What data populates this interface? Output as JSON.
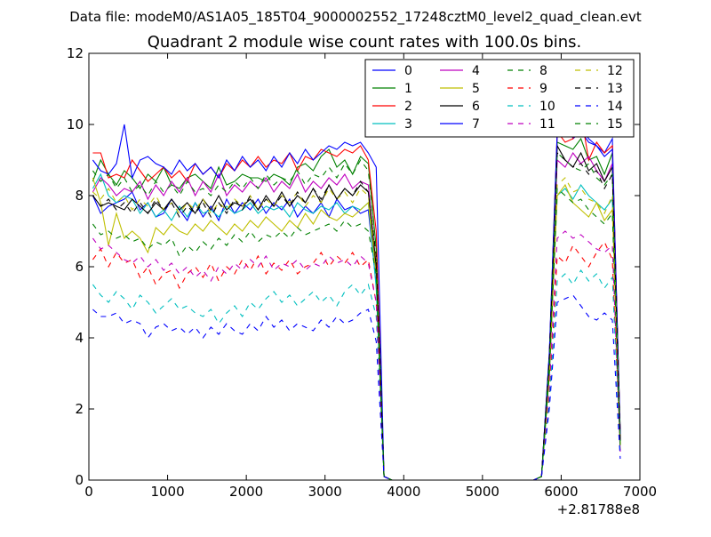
{
  "chart_data": {
    "type": "line",
    "suptitle": "Data file: modeM0/AS1A05_185T04_9000002552_17248cztM0_level2_quad_clean.evt",
    "title": "Quadrant 2 module wise count rates with 100.0s bins.",
    "xlabel": "",
    "ylabel": "",
    "x_offset_label": "+2.81788e8",
    "xlim": [
      0,
      7000
    ],
    "ylim": [
      0,
      12
    ],
    "xticks": [
      0,
      1000,
      2000,
      3000,
      4000,
      5000,
      6000,
      7000
    ],
    "yticks": [
      0,
      2,
      4,
      6,
      8,
      10,
      12
    ],
    "grid": false,
    "legend_position": "top-right",
    "legend_columns": 4,
    "x": [
      50,
      150,
      250,
      350,
      450,
      550,
      650,
      750,
      850,
      950,
      1050,
      1150,
      1250,
      1350,
      1450,
      1550,
      1650,
      1750,
      1850,
      1950,
      2050,
      2150,
      2250,
      2350,
      2450,
      2550,
      2650,
      2750,
      2850,
      2950,
      3050,
      3150,
      3250,
      3350,
      3450,
      3550,
      3650,
      3750,
      3850,
      3950,
      4050,
      4150,
      4250,
      4350,
      4450,
      4550,
      4650,
      4750,
      4850,
      4950,
      5050,
      5150,
      5250,
      5350,
      5450,
      5550,
      5650,
      5750,
      5850,
      5950,
      6050,
      6150,
      6250,
      6350,
      6450,
      6550,
      6650,
      6750
    ],
    "series": [
      {
        "name": "0",
        "color": "#0000ff",
        "dash": "solid",
        "values": [
          8.0,
          7.5,
          7.7,
          7.8,
          7.9,
          8.1,
          7.6,
          7.8,
          7.4,
          7.5,
          7.9,
          7.6,
          7.3,
          7.8,
          7.4,
          7.7,
          7.3,
          7.9,
          7.5,
          7.8,
          7.6,
          7.9,
          7.5,
          7.8,
          7.6,
          7.9,
          7.4,
          7.7,
          7.5,
          7.8,
          7.4,
          7.9,
          7.6,
          7.7,
          7.5,
          7.6,
          5.5,
          0.1,
          0,
          0,
          0,
          0,
          0,
          0,
          0,
          0,
          0,
          0,
          0,
          0,
          0,
          0,
          0,
          0,
          0,
          0,
          0,
          0.1,
          3.5,
          9.7,
          10.3,
          9.6,
          9.8,
          9.5,
          9.4,
          9.2,
          9.6,
          1.2
        ]
      },
      {
        "name": "1",
        "color": "#008000",
        "dash": "solid",
        "values": [
          8.4,
          9.0,
          8.6,
          8.3,
          8.7,
          8.5,
          8.2,
          8.6,
          8.4,
          8.8,
          8.3,
          8.2,
          8.5,
          8.6,
          8.4,
          8.2,
          8.8,
          8.3,
          8.4,
          8.6,
          8.5,
          8.5,
          8.4,
          8.6,
          8.5,
          8.3,
          8.8,
          8.9,
          8.7,
          9.1,
          9.3,
          8.8,
          9.0,
          8.6,
          9.1,
          8.9,
          6.5,
          0.1,
          0,
          0,
          0,
          0,
          0,
          0,
          0,
          0,
          0,
          0,
          0,
          0,
          0,
          0,
          0,
          0,
          0,
          0,
          0,
          0.1,
          3.5,
          9.5,
          9.4,
          9.3,
          9.6,
          9.0,
          9.1,
          8.6,
          9.2,
          1.3
        ]
      },
      {
        "name": "2",
        "color": "#ff0000",
        "dash": "solid",
        "values": [
          9.2,
          9.2,
          8.5,
          8.6,
          8.5,
          9.0,
          8.7,
          8.4,
          8.6,
          8.8,
          8.5,
          8.7,
          8.4,
          8.9,
          8.6,
          8.8,
          8.5,
          8.9,
          8.7,
          9.0,
          8.8,
          9.1,
          8.8,
          9.0,
          8.9,
          9.2,
          8.7,
          9.1,
          9.0,
          9.3,
          9.2,
          9.1,
          9.3,
          9.2,
          9.4,
          9.0,
          7.0,
          0.1,
          0,
          0,
          0,
          0,
          0,
          0,
          0,
          0,
          0,
          0,
          0,
          0,
          0,
          0,
          0,
          0,
          0,
          0,
          0,
          0.1,
          3.5,
          9.8,
          9.5,
          9.6,
          10.3,
          9.0,
          9.5,
          9.2,
          9.4,
          1.3
        ]
      },
      {
        "name": "3",
        "color": "#00bfbf",
        "dash": "solid",
        "values": [
          8.2,
          8.6,
          8.0,
          7.8,
          8.0,
          7.9,
          7.5,
          7.8,
          7.4,
          7.6,
          7.3,
          7.7,
          7.4,
          7.8,
          7.5,
          7.6,
          7.4,
          7.7,
          7.5,
          7.6,
          7.8,
          7.5,
          7.7,
          7.6,
          7.7,
          7.4,
          7.8,
          7.6,
          7.5,
          7.7,
          7.6,
          7.8,
          7.5,
          7.7,
          7.6,
          7.8,
          5.4,
          0.1,
          0,
          0,
          0,
          0,
          0,
          0,
          0,
          0,
          0,
          0,
          0,
          0,
          0,
          0,
          0,
          0,
          0,
          0,
          0,
          0.1,
          3.0,
          8.0,
          8.2,
          7.9,
          8.3,
          8.0,
          7.8,
          7.6,
          7.9,
          1.0
        ]
      },
      {
        "name": "4",
        "color": "#bf00bf",
        "dash": "solid",
        "values": [
          8.1,
          8.5,
          8.3,
          8.0,
          8.2,
          8.1,
          8.4,
          7.9,
          8.3,
          8.0,
          8.4,
          8.1,
          8.5,
          8.0,
          8.4,
          8.1,
          8.6,
          8.0,
          8.3,
          8.1,
          8.4,
          8.2,
          8.5,
          8.1,
          8.4,
          8.2,
          8.6,
          8.1,
          8.4,
          8.2,
          8.5,
          8.3,
          8.6,
          8.2,
          8.4,
          8.3,
          6.0,
          0.1,
          0,
          0,
          0,
          0,
          0,
          0,
          0,
          0,
          0,
          0,
          0,
          0,
          0,
          0,
          0,
          0,
          0,
          0,
          0,
          0.1,
          3.2,
          9.0,
          8.8,
          9.2,
          8.9,
          9.1,
          8.7,
          8.4,
          8.9,
          1.1
        ]
      },
      {
        "name": "5",
        "color": "#bfbf00",
        "dash": "solid",
        "values": [
          8.5,
          7.8,
          6.6,
          7.5,
          6.8,
          7.0,
          6.8,
          6.4,
          7.1,
          6.9,
          7.2,
          7.0,
          6.9,
          7.2,
          7.0,
          7.3,
          7.1,
          6.9,
          7.2,
          7.0,
          7.3,
          7.1,
          7.4,
          7.2,
          7.0,
          7.3,
          7.1,
          7.5,
          7.2,
          7.6,
          7.4,
          7.3,
          7.5,
          7.4,
          7.6,
          7.8,
          5.8,
          0.1,
          0,
          0,
          0,
          0,
          0,
          0,
          0,
          0,
          0,
          0,
          0,
          0,
          0,
          0,
          0,
          0,
          0,
          0,
          0,
          0.1,
          3.0,
          8.0,
          8.3,
          7.8,
          7.6,
          7.4,
          7.8,
          7.3,
          7.6,
          1.0
        ]
      },
      {
        "name": "6",
        "color": "#000000",
        "dash": "solid",
        "values": [
          8.0,
          7.7,
          7.8,
          7.7,
          7.6,
          7.9,
          7.7,
          7.5,
          7.8,
          7.6,
          7.9,
          7.6,
          7.8,
          7.5,
          7.9,
          7.6,
          8.0,
          7.6,
          7.8,
          7.7,
          7.9,
          7.6,
          8.0,
          7.7,
          8.1,
          7.7,
          8.0,
          7.8,
          8.2,
          7.8,
          8.3,
          7.9,
          8.2,
          8.0,
          8.3,
          8.1,
          6.0,
          0.1,
          0,
          0,
          0,
          0,
          0,
          0,
          0,
          0,
          0,
          0,
          0,
          0,
          0,
          0,
          0,
          0,
          0,
          0,
          0,
          0.1,
          3.3,
          9.4,
          9.0,
          8.8,
          9.2,
          8.7,
          8.9,
          8.4,
          8.8,
          1.1
        ]
      },
      {
        "name": "7",
        "color": "#0000ff",
        "dash": "solid",
        "values": [
          9.0,
          8.7,
          8.6,
          8.9,
          10.0,
          8.5,
          9.0,
          9.1,
          8.9,
          8.8,
          8.6,
          9.0,
          8.7,
          8.9,
          8.6,
          8.8,
          8.5,
          9.0,
          8.7,
          9.1,
          8.8,
          9.0,
          8.7,
          9.1,
          8.8,
          9.2,
          8.9,
          9.3,
          9.0,
          9.2,
          9.4,
          9.3,
          9.5,
          9.4,
          9.5,
          9.2,
          8.8,
          0.1,
          0,
          0,
          0,
          0,
          0,
          0,
          0,
          0,
          0,
          0,
          0,
          0,
          0,
          0,
          0,
          0,
          0,
          0,
          0,
          0.1,
          3.6,
          9.8,
          10.2,
          9.7,
          9.9,
          9.6,
          9.4,
          9.1,
          9.3,
          1.3
        ]
      },
      {
        "name": "8",
        "color": "#008000",
        "dash": "dashed",
        "values": [
          8.7,
          8.4,
          8.6,
          8.2,
          8.5,
          8.1,
          8.3,
          8.0,
          8.4,
          8.1,
          8.3,
          8.0,
          8.4,
          8.1,
          8.2,
          8.0,
          8.3,
          8.1,
          8.4,
          8.2,
          8.5,
          8.2,
          8.6,
          8.3,
          8.5,
          8.4,
          8.7,
          8.3,
          8.6,
          8.5,
          8.8,
          8.5,
          8.9,
          8.6,
          9.0,
          8.7,
          6.5,
          0.1,
          0,
          0,
          0,
          0,
          0,
          0,
          0,
          0,
          0,
          0,
          0,
          0,
          0,
          0,
          0,
          0,
          0,
          0,
          0,
          0.1,
          3.4,
          9.2,
          9.0,
          8.8,
          8.7,
          8.9,
          8.5,
          8.3,
          8.6,
          1.1
        ]
      },
      {
        "name": "9",
        "color": "#ff0000",
        "dash": "dashed",
        "values": [
          6.2,
          6.5,
          6.0,
          6.4,
          6.1,
          6.2,
          5.7,
          6.0,
          5.5,
          5.8,
          5.9,
          5.4,
          5.8,
          6.0,
          5.7,
          6.1,
          5.6,
          6.0,
          5.8,
          6.2,
          5.9,
          6.3,
          5.8,
          6.1,
          5.9,
          6.2,
          5.8,
          6.0,
          6.1,
          6.4,
          6.0,
          6.3,
          6.1,
          6.4,
          6.0,
          6.2,
          5.0,
          0.1,
          0,
          0,
          0,
          0,
          0,
          0,
          0,
          0,
          0,
          0,
          0,
          0,
          0,
          0,
          0,
          0,
          0,
          0,
          0,
          0.1,
          2.4,
          6.3,
          6.1,
          6.6,
          6.3,
          6.0,
          6.4,
          6.7,
          6.2,
          0.8
        ]
      },
      {
        "name": "10",
        "color": "#00bfbf",
        "dash": "dashed",
        "values": [
          5.5,
          5.2,
          5.0,
          5.3,
          5.1,
          4.8,
          5.2,
          5.0,
          4.7,
          4.9,
          5.1,
          4.8,
          4.9,
          4.7,
          4.6,
          4.8,
          4.4,
          4.7,
          4.9,
          4.6,
          5.0,
          4.8,
          5.1,
          5.3,
          5.0,
          5.2,
          4.9,
          5.1,
          5.3,
          5.0,
          5.2,
          4.9,
          5.3,
          5.5,
          5.2,
          5.5,
          4.6,
          0.1,
          0,
          0,
          0,
          0,
          0,
          0,
          0,
          0,
          0,
          0,
          0,
          0,
          0,
          0,
          0,
          0,
          0,
          0,
          0,
          0.1,
          2.2,
          5.6,
          5.8,
          5.5,
          5.9,
          5.6,
          5.8,
          5.4,
          5.7,
          0.7
        ]
      },
      {
        "name": "11",
        "color": "#bf00bf",
        "dash": "dashed",
        "values": [
          6.8,
          6.5,
          6.6,
          6.4,
          6.2,
          6.1,
          6.3,
          6.0,
          6.2,
          5.9,
          6.1,
          5.8,
          6.0,
          5.7,
          5.9,
          5.6,
          6.0,
          5.8,
          6.1,
          5.9,
          6.2,
          6.0,
          6.3,
          5.9,
          6.1,
          6.0,
          6.2,
          5.9,
          6.1,
          6.0,
          6.3,
          6.1,
          6.2,
          6.0,
          6.3,
          6.1,
          5.0,
          0.1,
          0,
          0,
          0,
          0,
          0,
          0,
          0,
          0,
          0,
          0,
          0,
          0,
          0,
          0,
          0,
          0,
          0,
          0,
          0,
          0.1,
          2.6,
          6.8,
          7.0,
          6.8,
          6.9,
          6.7,
          6.5,
          6.4,
          6.6,
          0.8
        ]
      },
      {
        "name": "12",
        "color": "#bfbf00",
        "dash": "dashed",
        "values": [
          8.1,
          7.9,
          8.2,
          7.8,
          8.0,
          7.6,
          7.9,
          7.7,
          8.0,
          7.6,
          7.8,
          7.5,
          7.8,
          7.6,
          7.9,
          7.5,
          7.8,
          7.6,
          7.9,
          7.7,
          8.0,
          7.6,
          7.9,
          7.7,
          8.0,
          7.8,
          8.1,
          7.7,
          8.0,
          7.8,
          8.2,
          7.9,
          8.1,
          7.8,
          8.2,
          8.0,
          6.2,
          0.1,
          0,
          0,
          0,
          0,
          0,
          0,
          0,
          0,
          0,
          0,
          0,
          0,
          0,
          0,
          0,
          0,
          0,
          0,
          0,
          0.1,
          3.0,
          8.3,
          8.5,
          8.1,
          8.2,
          7.9,
          7.8,
          7.5,
          8.0,
          1.0
        ]
      },
      {
        "name": "13",
        "color": "#000000",
        "dash": "dashed",
        "values": [
          8.0,
          7.7,
          7.9,
          7.6,
          7.8,
          7.5,
          7.8,
          7.5,
          7.9,
          7.6,
          7.8,
          7.4,
          7.7,
          7.5,
          7.8,
          7.4,
          7.8,
          7.5,
          7.9,
          7.6,
          8.0,
          7.6,
          7.9,
          7.7,
          8.0,
          7.7,
          8.1,
          7.8,
          8.2,
          7.9,
          8.3,
          7.9,
          8.2,
          8.0,
          8.4,
          8.1,
          6.3,
          0.1,
          0,
          0,
          0,
          0,
          0,
          0,
          0,
          0,
          0,
          0,
          0,
          0,
          0,
          0,
          0,
          0,
          0,
          0,
          0,
          0.1,
          3.4,
          9.2,
          9.0,
          8.8,
          8.9,
          8.6,
          8.7,
          8.2,
          8.6,
          1.1
        ]
      },
      {
        "name": "14",
        "color": "#0000ff",
        "dash": "dashed",
        "values": [
          4.8,
          4.6,
          4.6,
          4.7,
          4.4,
          4.5,
          4.4,
          4.0,
          4.3,
          4.4,
          4.2,
          4.3,
          4.1,
          4.3,
          4.0,
          4.3,
          4.1,
          4.4,
          4.2,
          4.1,
          4.4,
          4.2,
          4.6,
          4.3,
          4.5,
          4.2,
          4.4,
          4.3,
          4.2,
          4.5,
          4.3,
          4.6,
          4.4,
          4.5,
          4.7,
          4.8,
          3.9,
          0.1,
          0,
          0,
          0,
          0,
          0,
          0,
          0,
          0,
          0,
          0,
          0,
          0,
          0,
          0,
          0,
          0,
          0,
          0,
          0,
          0.1,
          2.0,
          5.0,
          5.1,
          5.2,
          4.9,
          4.6,
          4.5,
          4.7,
          4.5,
          0.6
        ]
      },
      {
        "name": "15",
        "color": "#008000",
        "dash": "dashed",
        "values": [
          7.2,
          6.9,
          7.0,
          6.8,
          6.9,
          6.7,
          6.8,
          6.5,
          6.7,
          6.6,
          6.8,
          6.3,
          6.6,
          6.4,
          6.7,
          6.5,
          6.8,
          6.6,
          6.9,
          6.7,
          7.0,
          6.7,
          6.9,
          6.8,
          7.0,
          6.8,
          7.1,
          6.9,
          7.0,
          7.1,
          7.2,
          7.0,
          7.3,
          7.1,
          7.2,
          7.0,
          5.8,
          0.1,
          0,
          0,
          0,
          0,
          0,
          0,
          0,
          0,
          0,
          0,
          0,
          0,
          0,
          0,
          0,
          0,
          0,
          0,
          0,
          0.1,
          3.0,
          8.2,
          8.0,
          7.8,
          7.9,
          7.6,
          7.4,
          7.2,
          7.5,
          0.9
        ]
      }
    ]
  }
}
